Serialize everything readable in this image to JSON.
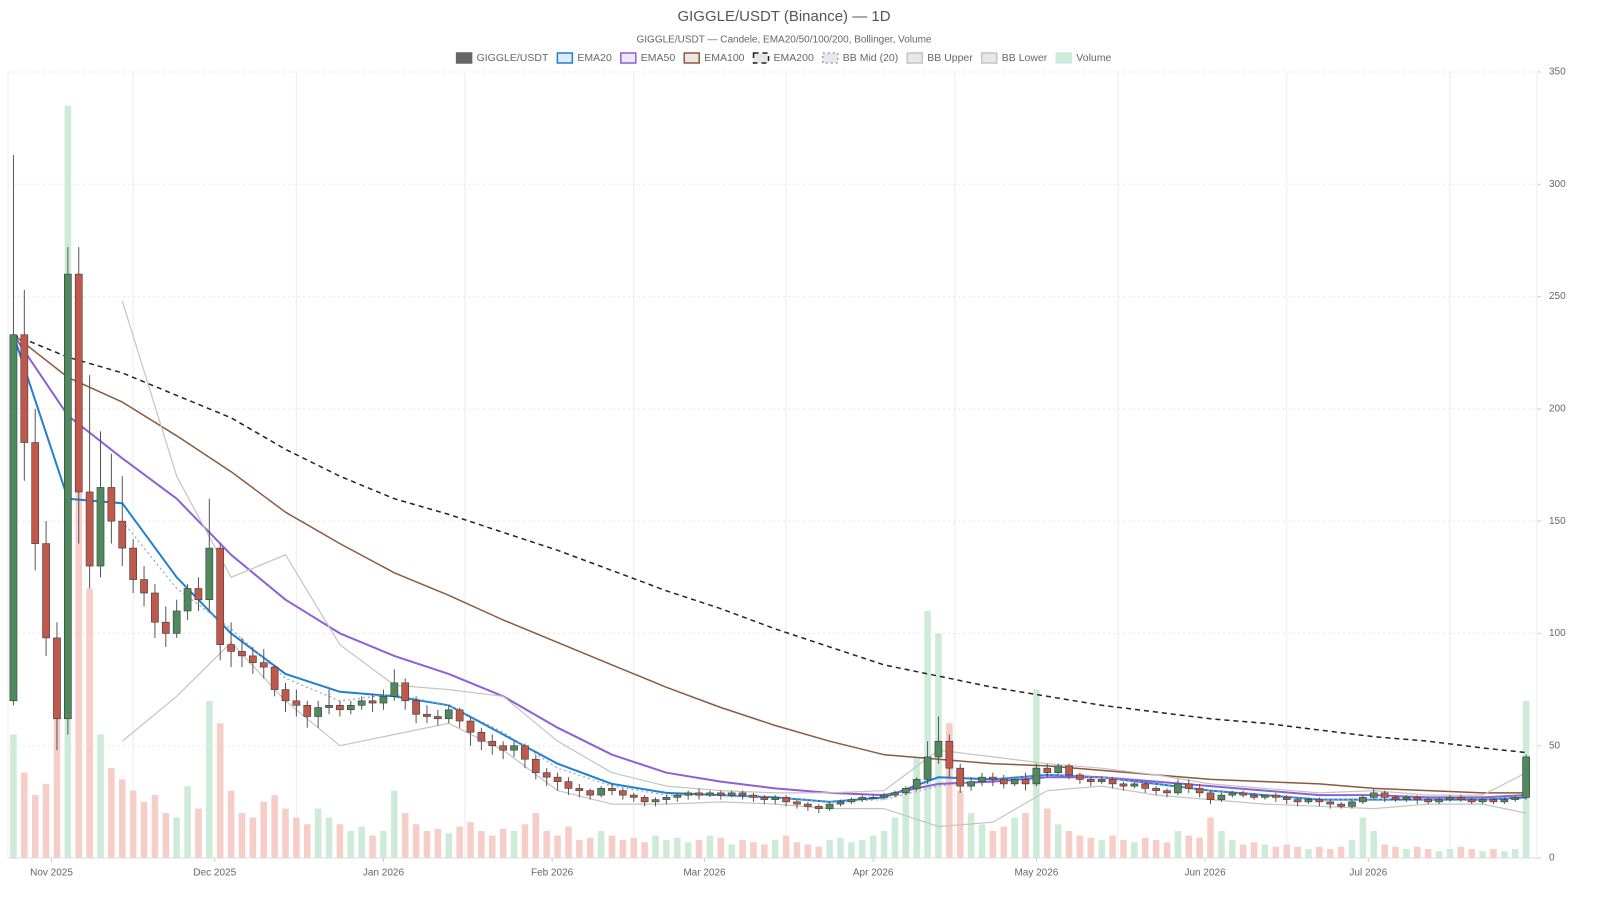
{
  "chart_data": {
    "type": "candlestick",
    "title": "GIGGLE/USDT (Binance) — 1D",
    "subtitle": "GIGGLE/USDT — Candele, EMA20/50/100/200, Bollinger, Volume",
    "xlim": [
      -1,
      280
    ],
    "xticks": [
      {
        "value": 7,
        "label": "Nov 2025"
      },
      {
        "value": 37,
        "label": "Dec 2025"
      },
      {
        "value": 68,
        "label": "Jan 2026"
      },
      {
        "value": 99,
        "label": "Feb 2026"
      },
      {
        "value": 127,
        "label": "Mar 2026"
      },
      {
        "value": 158,
        "label": "Apr 2026"
      },
      {
        "value": 188,
        "label": "May 2026"
      },
      {
        "value": 219,
        "label": "Jun 2026"
      },
      {
        "value": 249,
        "label": "Jul 2026"
      }
    ],
    "xgrid": [
      22,
      52,
      83,
      114,
      142,
      173,
      203,
      234,
      264
    ],
    "ylim": [
      0,
      350
    ],
    "yticks": [
      0,
      50,
      100,
      150,
      200,
      250,
      300,
      350
    ],
    "grid": true,
    "candles": {
      "name": "GIGGLE/USDT",
      "color": "#666666",
      "up_color": "#4f8a5f",
      "down_color": "#c0594c",
      "x": [
        0,
        2,
        4,
        6,
        8,
        10,
        12,
        14,
        16,
        18,
        20,
        22,
        24,
        26,
        28,
        30,
        32,
        34,
        36,
        38,
        40,
        42,
        44,
        46,
        48,
        50,
        52,
        54,
        56,
        58,
        60,
        62,
        64,
        66,
        68,
        70,
        72,
        74,
        76,
        78,
        80,
        82,
        84,
        86,
        88,
        90,
        92,
        94,
        96,
        98,
        100,
        102,
        104,
        106,
        108,
        110,
        112,
        114,
        116,
        118,
        120,
        122,
        124,
        126,
        128,
        130,
        132,
        134,
        136,
        138,
        140,
        142,
        144,
        146,
        148,
        150,
        152,
        154,
        156,
        158,
        160,
        162,
        164,
        166,
        168,
        170,
        172,
        174,
        176,
        178,
        180,
        182,
        184,
        186,
        188,
        190,
        192,
        194,
        196,
        198,
        200,
        202,
        204,
        206,
        208,
        210,
        212,
        214,
        216,
        218,
        220,
        222,
        224,
        226,
        228,
        230,
        232,
        234,
        236,
        238,
        240,
        242,
        244,
        246,
        248,
        250,
        252,
        254,
        256,
        258,
        260,
        262,
        264,
        266,
        268,
        270,
        272,
        274,
        276,
        278
      ],
      "open": [
        70,
        233,
        185,
        140,
        98,
        62,
        260,
        163,
        130,
        165,
        150,
        138,
        124,
        118,
        105,
        100,
        110,
        120,
        115,
        138,
        95,
        92,
        90,
        87,
        85,
        75,
        70,
        68,
        63,
        67,
        68,
        66,
        68,
        70,
        69,
        72,
        78,
        70,
        64,
        63,
        62,
        66,
        61,
        56,
        52,
        50,
        48,
        50,
        44,
        38,
        36,
        34,
        31,
        30,
        28,
        31,
        30,
        28,
        27,
        25,
        26,
        27,
        28,
        29,
        28,
        29,
        28,
        29,
        28,
        27,
        26,
        27,
        25,
        24,
        23,
        22,
        24,
        25,
        26,
        27,
        27,
        28,
        29,
        31,
        35,
        45,
        52,
        40,
        32,
        34,
        36,
        35,
        33,
        35,
        33,
        40,
        38,
        41,
        37,
        35,
        34,
        35,
        33,
        32,
        33,
        31,
        30,
        29,
        33,
        31,
        29,
        26,
        28,
        29,
        28,
        27,
        28,
        27,
        26,
        25,
        26,
        25,
        24,
        23,
        25,
        27,
        29,
        27,
        26,
        27,
        26,
        25,
        26,
        27,
        26,
        25,
        26,
        25,
        26,
        27
      ],
      "high": [
        313,
        253,
        200,
        150,
        105,
        272,
        272,
        215,
        190,
        180,
        170,
        142,
        130,
        122,
        112,
        115,
        122,
        125,
        160,
        140,
        105,
        98,
        94,
        93,
        86,
        78,
        75,
        70,
        70,
        75,
        70,
        70,
        72,
        73,
        75,
        84,
        80,
        72,
        68,
        66,
        68,
        67,
        63,
        58,
        55,
        52,
        52,
        51,
        46,
        40,
        38,
        36,
        33,
        31,
        32,
        33,
        31,
        29,
        28,
        27,
        28,
        29,
        30,
        31,
        30,
        30,
        30,
        30,
        29,
        28,
        28,
        28,
        26,
        25,
        24,
        25,
        26,
        27,
        28,
        28,
        29,
        30,
        32,
        36,
        52,
        63,
        55,
        42,
        36,
        38,
        38,
        37,
        36,
        38,
        42,
        42,
        42,
        42,
        38,
        36,
        36,
        36,
        34,
        34,
        34,
        32,
        31,
        35,
        35,
        33,
        30,
        29,
        30,
        30,
        29,
        28,
        29,
        28,
        27,
        27,
        27,
        26,
        25,
        26,
        28,
        31,
        30,
        28,
        28,
        28,
        27,
        27,
        28,
        28,
        27,
        27,
        27,
        27,
        28,
        46
      ],
      "low": [
        68,
        168,
        128,
        90,
        48,
        55,
        140,
        120,
        125,
        140,
        130,
        118,
        112,
        98,
        94,
        98,
        106,
        110,
        110,
        88,
        85,
        85,
        82,
        80,
        72,
        65,
        63,
        58,
        58,
        64,
        63,
        64,
        66,
        65,
        66,
        70,
        66,
        60,
        60,
        59,
        60,
        58,
        50,
        48,
        46,
        44,
        45,
        40,
        35,
        32,
        30,
        28,
        27,
        26,
        27,
        28,
        26,
        25,
        23,
        23,
        24,
        25,
        26,
        26,
        27,
        26,
        27,
        26,
        25,
        24,
        24,
        23,
        22,
        21,
        20,
        21,
        23,
        24,
        25,
        26,
        26,
        27,
        28,
        30,
        33,
        42,
        36,
        29,
        30,
        32,
        32,
        31,
        32,
        30,
        32,
        36,
        37,
        35,
        33,
        32,
        33,
        31,
        30,
        31,
        29,
        28,
        27,
        28,
        29,
        27,
        24,
        25,
        27,
        27,
        26,
        26,
        25,
        24,
        23,
        24,
        23,
        22,
        22,
        22,
        24,
        26,
        25,
        25,
        25,
        24,
        24,
        24,
        25,
        25,
        24,
        24,
        24,
        24,
        25,
        26
      ],
      "close": [
        233,
        185,
        140,
        98,
        62,
        260,
        163,
        130,
        165,
        150,
        138,
        124,
        118,
        105,
        100,
        110,
        120,
        115,
        138,
        95,
        92,
        90,
        87,
        85,
        75,
        70,
        68,
        63,
        67,
        68,
        66,
        68,
        70,
        69,
        72,
        78,
        70,
        64,
        63,
        62,
        66,
        61,
        56,
        52,
        50,
        48,
        50,
        44,
        38,
        36,
        34,
        31,
        30,
        28,
        31,
        30,
        28,
        27,
        25,
        26,
        27,
        28,
        29,
        28,
        29,
        28,
        29,
        28,
        27,
        26,
        27,
        25,
        24,
        23,
        22,
        24,
        25,
        26,
        27,
        27,
        28,
        29,
        31,
        35,
        45,
        52,
        40,
        32,
        34,
        36,
        35,
        33,
        35,
        33,
        40,
        38,
        41,
        37,
        35,
        34,
        35,
        33,
        32,
        33,
        31,
        30,
        29,
        33,
        31,
        29,
        26,
        28,
        29,
        28,
        27,
        28,
        27,
        26,
        25,
        26,
        25,
        24,
        23,
        25,
        27,
        29,
        27,
        26,
        27,
        26,
        25,
        26,
        27,
        26,
        25,
        26,
        25,
        26,
        27,
        45
      ]
    },
    "volume": {
      "name": "Volume",
      "color": "#cdebd8",
      "up_color": "#cdebd8",
      "down_color": "#f6cdc7",
      "ylim": [
        0,
        350
      ],
      "values": [
        55,
        38,
        28,
        33,
        65,
        335,
        260,
        120,
        55,
        40,
        35,
        30,
        25,
        28,
        20,
        18,
        32,
        22,
        70,
        60,
        30,
        20,
        18,
        25,
        28,
        22,
        18,
        15,
        22,
        18,
        15,
        12,
        14,
        10,
        12,
        30,
        20,
        15,
        12,
        13,
        11,
        14,
        16,
        12,
        10,
        13,
        12,
        15,
        20,
        12,
        10,
        14,
        8,
        9,
        12,
        10,
        8,
        9,
        7,
        10,
        8,
        9,
        7,
        8,
        10,
        9,
        6,
        8,
        7,
        6,
        8,
        10,
        7,
        6,
        5,
        8,
        9,
        7,
        8,
        10,
        12,
        18,
        30,
        45,
        110,
        100,
        60,
        30,
        20,
        15,
        12,
        14,
        18,
        20,
        75,
        22,
        15,
        12,
        10,
        9,
        8,
        10,
        8,
        7,
        9,
        8,
        7,
        12,
        10,
        9,
        18,
        12,
        8,
        6,
        7,
        6,
        5,
        6,
        5,
        4,
        5,
        4,
        5,
        8,
        18,
        12,
        6,
        5,
        4,
        5,
        4,
        3,
        4,
        5,
        4,
        3,
        4,
        3,
        4,
        70
      ]
    },
    "lines": [
      {
        "name": "EMA20",
        "color": "#1f7fd1",
        "style": "solid",
        "width": 2,
        "x": [
          0,
          10,
          20,
          30,
          40,
          50,
          60,
          70,
          80,
          90,
          100,
          110,
          120,
          130,
          140,
          150,
          160,
          170,
          180,
          190,
          200,
          210,
          220,
          230,
          240,
          250,
          260,
          270,
          278
        ],
        "values": [
          233,
          160,
          158,
          125,
          100,
          82,
          74,
          72,
          68,
          55,
          42,
          33,
          29,
          28,
          27,
          25,
          27,
          36,
          35,
          37,
          36,
          33,
          30,
          28,
          26,
          26,
          26,
          26,
          27
        ]
      },
      {
        "name": "EMA50",
        "color": "#8e5fd6",
        "style": "solid",
        "width": 2,
        "x": [
          0,
          10,
          20,
          30,
          40,
          50,
          60,
          70,
          80,
          90,
          100,
          110,
          120,
          130,
          140,
          150,
          160,
          170,
          180,
          190,
          200,
          210,
          220,
          230,
          240,
          250,
          260,
          270,
          278
        ],
        "values": [
          233,
          197,
          178,
          160,
          135,
          115,
          100,
          90,
          82,
          72,
          58,
          46,
          38,
          34,
          31,
          29,
          28,
          33,
          34,
          36,
          36,
          34,
          32,
          30,
          28,
          28,
          27,
          27,
          28
        ]
      },
      {
        "name": "EMA100",
        "color": "#8b5a3c",
        "style": "solid",
        "width": 1.5,
        "x": [
          0,
          10,
          20,
          30,
          40,
          50,
          60,
          70,
          80,
          90,
          100,
          110,
          120,
          130,
          140,
          150,
          160,
          170,
          180,
          190,
          200,
          210,
          220,
          230,
          240,
          250,
          260,
          270,
          278
        ],
        "values": [
          233,
          214,
          203,
          188,
          172,
          154,
          140,
          127,
          117,
          106,
          96,
          86,
          76,
          67,
          59,
          52,
          46,
          44,
          42,
          41,
          39,
          37,
          35,
          34,
          33,
          31,
          30,
          29,
          29
        ]
      },
      {
        "name": "EMA200",
        "color": "#222222",
        "style": "dashed",
        "width": 1.5,
        "x": [
          0,
          10,
          20,
          30,
          40,
          50,
          60,
          70,
          80,
          90,
          100,
          110,
          120,
          130,
          140,
          150,
          160,
          170,
          180,
          190,
          200,
          210,
          220,
          230,
          240,
          250,
          260,
          270,
          278
        ],
        "values": [
          233,
          223,
          216,
          206,
          196,
          182,
          170,
          160,
          153,
          145,
          137,
          128,
          119,
          111,
          102,
          94,
          86,
          81,
          76,
          72,
          68,
          65,
          62,
          60,
          57,
          54,
          52,
          49,
          47
        ]
      },
      {
        "name": "BB Mid (20)",
        "color": "#8aa8cf",
        "style": "dotted",
        "width": 1.2,
        "x": [
          20,
          30,
          40,
          50,
          60,
          70,
          80,
          90,
          100,
          110,
          120,
          130,
          140,
          150,
          160,
          170,
          180,
          190,
          200,
          210,
          220,
          230,
          240,
          250,
          260,
          270,
          278
        ],
        "values": [
          150,
          120,
          102,
          80,
          70,
          73,
          68,
          56,
          40,
          32,
          28,
          28,
          27,
          25,
          26,
          32,
          35,
          37,
          36,
          33,
          30,
          28,
          26,
          26,
          26,
          26,
          27
        ]
      },
      {
        "name": "BB Upper",
        "color": "#c4c4c4",
        "style": "solid",
        "width": 1.2,
        "x": [
          20,
          30,
          40,
          50,
          60,
          70,
          80,
          90,
          100,
          110,
          120,
          130,
          140,
          150,
          160,
          170,
          180,
          190,
          200,
          210,
          220,
          230,
          240,
          250,
          260,
          270,
          278
        ],
        "values": [
          248,
          170,
          125,
          135,
          95,
          77,
          75,
          72,
          52,
          38,
          32,
          30,
          29,
          29,
          30,
          48,
          45,
          42,
          40,
          37,
          33,
          31,
          29,
          30,
          28,
          28,
          38
        ]
      },
      {
        "name": "BB Lower",
        "color": "#c4c4c4",
        "style": "solid",
        "width": 1.2,
        "x": [
          20,
          30,
          40,
          50,
          60,
          70,
          80,
          90,
          100,
          110,
          120,
          130,
          140,
          150,
          160,
          170,
          180,
          190,
          200,
          210,
          220,
          230,
          240,
          250,
          260,
          270,
          278
        ],
        "values": [
          52,
          72,
          96,
          70,
          50,
          55,
          60,
          48,
          30,
          24,
          24,
          25,
          24,
          22,
          22,
          14,
          16,
          30,
          32,
          28,
          26,
          24,
          23,
          22,
          24,
          24,
          20
        ]
      }
    ]
  }
}
